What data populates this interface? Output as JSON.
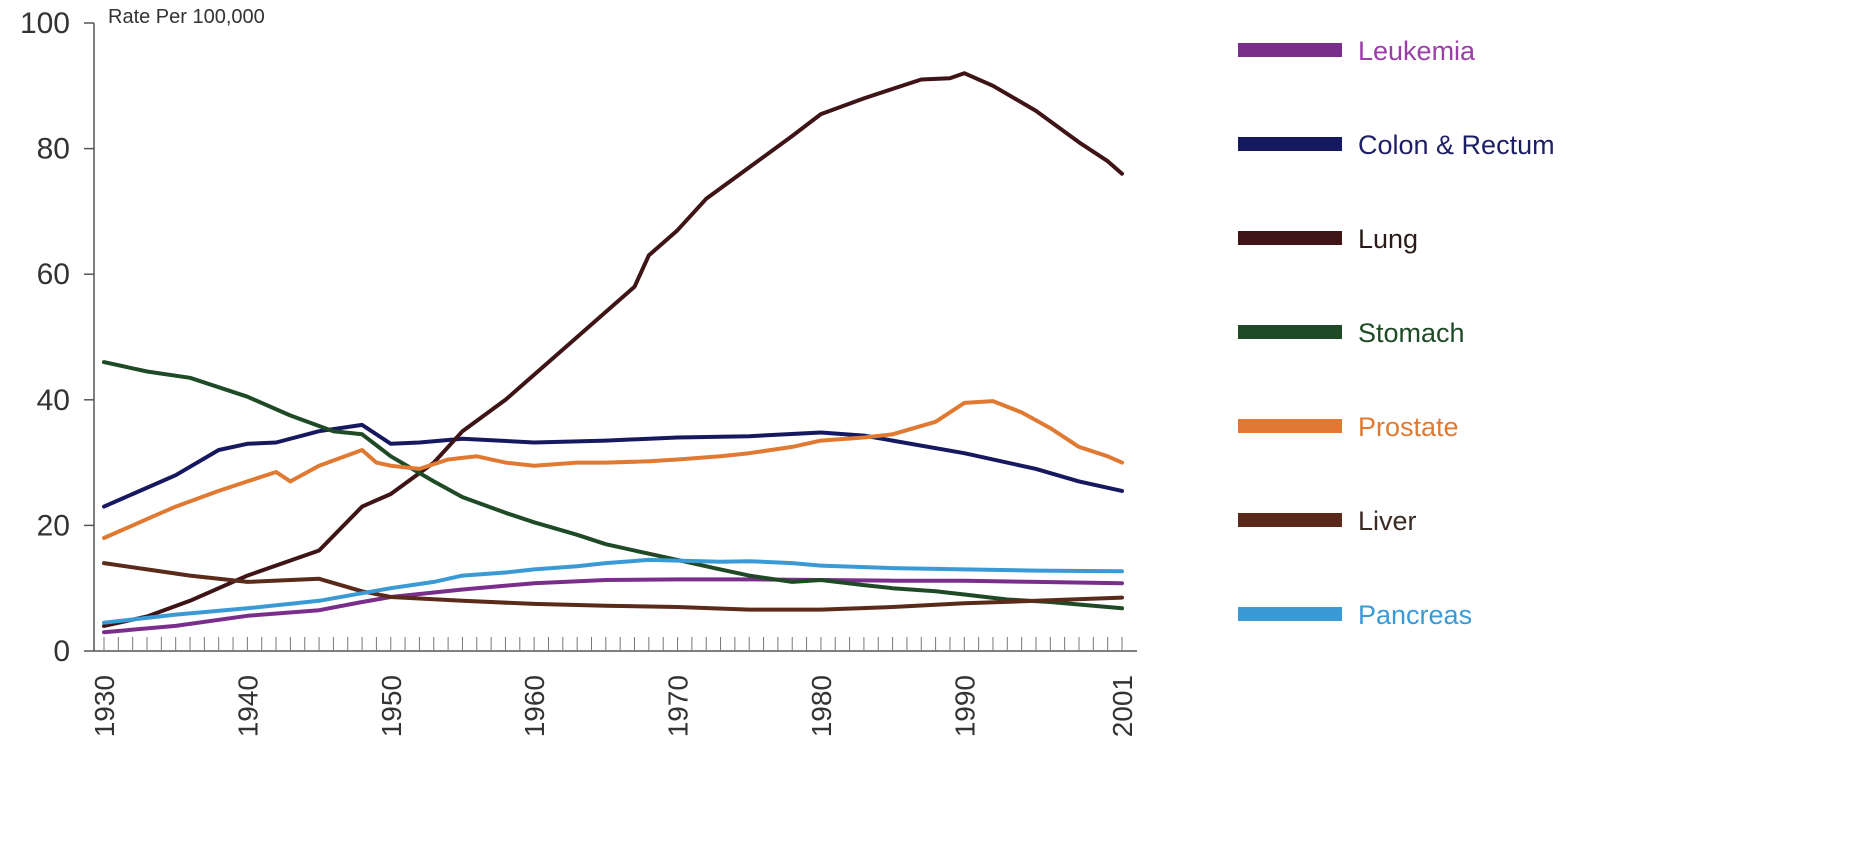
{
  "chart_data": {
    "type": "line",
    "title": "",
    "ylabel": "Rate Per 100,000",
    "xlabel": "",
    "xlim": [
      1930,
      2001
    ],
    "ylim": [
      0,
      100
    ],
    "x_ticks": [
      "1930",
      "1940",
      "1950",
      "1960",
      "1970",
      "1980",
      "1990",
      "2001"
    ],
    "y_ticks": [
      "0",
      "20",
      "40",
      "60",
      "80",
      "100"
    ],
    "minor_x_ticks_every_year": true,
    "grid": false,
    "legend_position": "right",
    "series": [
      {
        "name": "Leukemia",
        "color": "#7a2e8c",
        "label_color": "#9b3fa8",
        "points": [
          [
            1930,
            3.0
          ],
          [
            1935,
            4.0
          ],
          [
            1940,
            5.6
          ],
          [
            1945,
            6.5
          ],
          [
            1948,
            7.8
          ],
          [
            1950,
            8.6
          ],
          [
            1955,
            9.8
          ],
          [
            1960,
            10.8
          ],
          [
            1965,
            11.3
          ],
          [
            1970,
            11.4
          ],
          [
            1975,
            11.4
          ],
          [
            1980,
            11.3
          ],
          [
            1985,
            11.2
          ],
          [
            1990,
            11.2
          ],
          [
            1995,
            11.0
          ],
          [
            2001,
            10.8
          ]
        ]
      },
      {
        "name": "Colon & Rectum",
        "color": "#16195f",
        "label_color": "#1c1f66",
        "points": [
          [
            1930,
            23.0
          ],
          [
            1932,
            25.0
          ],
          [
            1935,
            28.0
          ],
          [
            1938,
            32.0
          ],
          [
            1940,
            33.0
          ],
          [
            1942,
            33.2
          ],
          [
            1945,
            35.0
          ],
          [
            1948,
            36.0
          ],
          [
            1950,
            33.0
          ],
          [
            1952,
            33.2
          ],
          [
            1955,
            33.8
          ],
          [
            1960,
            33.2
          ],
          [
            1965,
            33.5
          ],
          [
            1970,
            34.0
          ],
          [
            1975,
            34.2
          ],
          [
            1980,
            34.8
          ],
          [
            1983,
            34.3
          ],
          [
            1985,
            33.5
          ],
          [
            1990,
            31.5
          ],
          [
            1995,
            29.0
          ],
          [
            1998,
            27.0
          ],
          [
            2001,
            25.5
          ]
        ]
      },
      {
        "name": "Lung",
        "color": "#3e1416",
        "label_color": "#2a1a1a",
        "points": [
          [
            1930,
            4.0
          ],
          [
            1933,
            5.5
          ],
          [
            1936,
            8.0
          ],
          [
            1940,
            12.0
          ],
          [
            1945,
            16.0
          ],
          [
            1948,
            23.0
          ],
          [
            1950,
            25.0
          ],
          [
            1953,
            30.0
          ],
          [
            1955,
            35.0
          ],
          [
            1958,
            40.0
          ],
          [
            1960,
            44.0
          ],
          [
            1963,
            50.0
          ],
          [
            1965,
            54.0
          ],
          [
            1967,
            58.0
          ],
          [
            1968,
            63.0
          ],
          [
            1970,
            67.0
          ],
          [
            1972,
            72.0
          ],
          [
            1975,
            77.0
          ],
          [
            1978,
            82.0
          ],
          [
            1980,
            85.5
          ],
          [
            1983,
            88.0
          ],
          [
            1985,
            89.5
          ],
          [
            1987,
            91.0
          ],
          [
            1989,
            91.2
          ],
          [
            1990,
            92.0
          ],
          [
            1992,
            90.0
          ],
          [
            1995,
            86.0
          ],
          [
            1998,
            81.0
          ],
          [
            2000,
            78.0
          ],
          [
            2001,
            76.0
          ]
        ]
      },
      {
        "name": "Stomach",
        "color": "#1f4a26",
        "label_color": "#1f4a26",
        "points": [
          [
            1930,
            46.0
          ],
          [
            1933,
            44.5
          ],
          [
            1936,
            43.5
          ],
          [
            1940,
            40.5
          ],
          [
            1943,
            37.5
          ],
          [
            1946,
            35.0
          ],
          [
            1948,
            34.5
          ],
          [
            1950,
            31.0
          ],
          [
            1953,
            27.0
          ],
          [
            1955,
            24.5
          ],
          [
            1958,
            22.0
          ],
          [
            1960,
            20.5
          ],
          [
            1963,
            18.5
          ],
          [
            1965,
            17.0
          ],
          [
            1968,
            15.5
          ],
          [
            1970,
            14.5
          ],
          [
            1973,
            13.0
          ],
          [
            1975,
            12.0
          ],
          [
            1978,
            11.0
          ],
          [
            1980,
            11.3
          ],
          [
            1983,
            10.5
          ],
          [
            1985,
            10.0
          ],
          [
            1988,
            9.5
          ],
          [
            1990,
            9.0
          ],
          [
            1993,
            8.2
          ],
          [
            1996,
            7.8
          ],
          [
            2001,
            6.8
          ]
        ]
      },
      {
        "name": "Prostate",
        "color": "#e07a32",
        "label_color": "#e07a32",
        "points": [
          [
            1930,
            18.0
          ],
          [
            1933,
            21.0
          ],
          [
            1935,
            23.0
          ],
          [
            1938,
            25.5
          ],
          [
            1940,
            27.0
          ],
          [
            1942,
            28.5
          ],
          [
            1943,
            27.0
          ],
          [
            1945,
            29.5
          ],
          [
            1948,
            32.0
          ],
          [
            1949,
            30.0
          ],
          [
            1950,
            29.5
          ],
          [
            1952,
            29.0
          ],
          [
            1954,
            30.5
          ],
          [
            1956,
            31.0
          ],
          [
            1958,
            30.0
          ],
          [
            1960,
            29.5
          ],
          [
            1963,
            30.0
          ],
          [
            1965,
            30.0
          ],
          [
            1968,
            30.2
          ],
          [
            1970,
            30.5
          ],
          [
            1973,
            31.0
          ],
          [
            1975,
            31.5
          ],
          [
            1978,
            32.5
          ],
          [
            1980,
            33.5
          ],
          [
            1983,
            34.0
          ],
          [
            1985,
            34.5
          ],
          [
            1988,
            36.5
          ],
          [
            1990,
            39.5
          ],
          [
            1992,
            39.8
          ],
          [
            1994,
            38.0
          ],
          [
            1996,
            35.5
          ],
          [
            1998,
            32.5
          ],
          [
            2000,
            31.0
          ],
          [
            2001,
            30.0
          ]
        ]
      },
      {
        "name": "Liver",
        "color": "#5a2a1a",
        "label_color": "#3a2a22",
        "points": [
          [
            1930,
            14.0
          ],
          [
            1933,
            13.0
          ],
          [
            1936,
            12.0
          ],
          [
            1940,
            11.0
          ],
          [
            1945,
            11.5
          ],
          [
            1948,
            9.5
          ],
          [
            1950,
            8.6
          ],
          [
            1955,
            8.0
          ],
          [
            1960,
            7.5
          ],
          [
            1965,
            7.2
          ],
          [
            1970,
            7.0
          ],
          [
            1975,
            6.6
          ],
          [
            1980,
            6.6
          ],
          [
            1985,
            7.0
          ],
          [
            1990,
            7.6
          ],
          [
            1995,
            8.0
          ],
          [
            2001,
            8.5
          ]
        ]
      },
      {
        "name": "Pancreas",
        "color": "#3a9ad6",
        "label_color": "#3a9ad6",
        "points": [
          [
            1930,
            4.5
          ],
          [
            1935,
            5.8
          ],
          [
            1940,
            6.8
          ],
          [
            1945,
            8.0
          ],
          [
            1948,
            9.2
          ],
          [
            1950,
            10.0
          ],
          [
            1953,
            11.0
          ],
          [
            1955,
            12.0
          ],
          [
            1958,
            12.5
          ],
          [
            1960,
            13.0
          ],
          [
            1963,
            13.5
          ],
          [
            1965,
            14.0
          ],
          [
            1968,
            14.5
          ],
          [
            1970,
            14.4
          ],
          [
            1973,
            14.2
          ],
          [
            1975,
            14.3
          ],
          [
            1978,
            14.0
          ],
          [
            1980,
            13.6
          ],
          [
            1985,
            13.2
          ],
          [
            1990,
            13.0
          ],
          [
            1995,
            12.8
          ],
          [
            2001,
            12.7
          ]
        ]
      }
    ]
  }
}
